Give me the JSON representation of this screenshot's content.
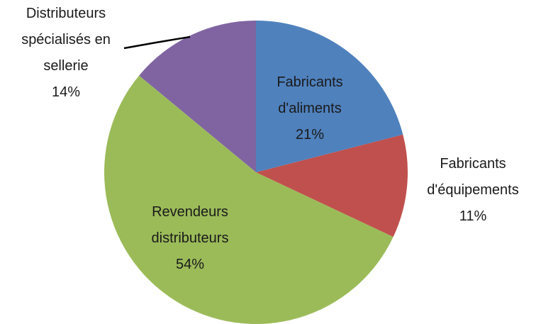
{
  "chart_data": {
    "type": "pie",
    "categories": [
      "Fabricants d'aliments",
      "Fabricants d'équipements",
      "Revendeurs distributeurs",
      "Distributeurs spécialisés en sellerie"
    ],
    "values": [
      21,
      11,
      54,
      14
    ],
    "value_labels": [
      "21%",
      "11%",
      "54%",
      "14%"
    ],
    "colors": [
      "#4f81bd",
      "#c0504d",
      "#9bbb59",
      "#8064a2"
    ]
  }
}
